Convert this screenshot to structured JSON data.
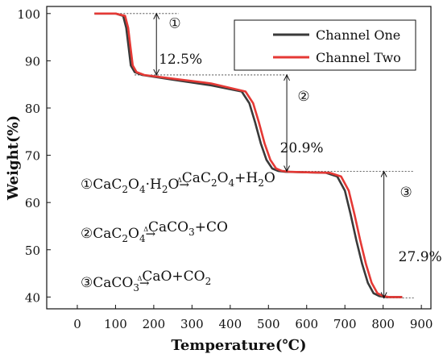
{
  "chart_data": {
    "type": "line",
    "title": "",
    "xlabel": "Temperature(℃)",
    "ylabel": "Weight(%)",
    "xlim": [
      -80,
      925
    ],
    "ylim": [
      37.5,
      101.5
    ],
    "xticks": [
      0,
      100,
      200,
      300,
      400,
      500,
      600,
      700,
      800,
      900
    ],
    "yticks": [
      40,
      50,
      60,
      70,
      80,
      90,
      100
    ],
    "legend_position": "top-right",
    "series": [
      {
        "name": "Channel One",
        "color": "#3a3a3a",
        "x": [
          45,
          100,
          120,
          128,
          134,
          140,
          150,
          170,
          250,
          350,
          430,
          450,
          465,
          480,
          495,
          510,
          525,
          545,
          600,
          650,
          680,
          700,
          715,
          730,
          745,
          760,
          775,
          790,
          810,
          850
        ],
        "y": [
          100,
          100,
          99.5,
          97,
          93,
          89,
          87.6,
          87,
          86,
          84.8,
          83.5,
          81,
          77,
          72.5,
          69,
          67.2,
          66.7,
          66.5,
          66.4,
          66.3,
          65.5,
          62.5,
          57.5,
          52,
          47,
          43,
          40.8,
          40.2,
          40.0,
          40.0
        ]
      },
      {
        "name": "Channel Two",
        "color": "#e53935",
        "x": [
          45,
          100,
          125,
          133,
          139,
          145,
          155,
          175,
          250,
          350,
          440,
          460,
          475,
          490,
          505,
          520,
          535,
          555,
          600,
          660,
          690,
          710,
          725,
          740,
          755,
          770,
          785,
          800,
          815,
          850
        ],
        "y": [
          100,
          100,
          99.5,
          97,
          93,
          89,
          87.6,
          87,
          86.2,
          85.2,
          83.5,
          81,
          77,
          72.5,
          69,
          67.2,
          66.7,
          66.5,
          66.4,
          66.3,
          65.5,
          62.5,
          57.5,
          52,
          47,
          43,
          40.8,
          40.2,
          40.0,
          40.0
        ]
      }
    ],
    "annotations": [
      {
        "marker": "①",
        "label": "12.5%"
      },
      {
        "marker": "②",
        "label": "20.9%"
      },
      {
        "marker": "③",
        "label": "27.9%"
      }
    ],
    "reactions": [
      {
        "marker": "①",
        "parts": [
          [
            "CaC",
            ""
          ],
          [
            "2",
            "sub"
          ],
          [
            "O",
            ""
          ],
          [
            "4",
            "sub"
          ],
          [
            "·H",
            ""
          ],
          [
            "2",
            "sub"
          ],
          [
            "O",
            ""
          ],
          [
            "Δ",
            "arrow"
          ],
          [
            "CaC",
            ""
          ],
          [
            "2",
            "sub"
          ],
          [
            "O",
            ""
          ],
          [
            "4",
            "sub"
          ],
          [
            "+H",
            ""
          ],
          [
            "2",
            "sub"
          ],
          [
            "O",
            ""
          ]
        ]
      },
      {
        "marker": "②",
        "parts": [
          [
            "CaC",
            ""
          ],
          [
            "2",
            "sub"
          ],
          [
            "O",
            ""
          ],
          [
            "4",
            "sub"
          ],
          [
            "Δ",
            "arrow"
          ],
          [
            "CaCO",
            ""
          ],
          [
            "3",
            "sub"
          ],
          [
            "+CO",
            ""
          ]
        ]
      },
      {
        "marker": "③",
        "parts": [
          [
            "CaCO",
            ""
          ],
          [
            "3",
            "sub"
          ],
          [
            "Δ",
            "arrow"
          ],
          [
            "CaO+CO",
            ""
          ],
          [
            "2",
            "sub"
          ]
        ]
      }
    ]
  }
}
